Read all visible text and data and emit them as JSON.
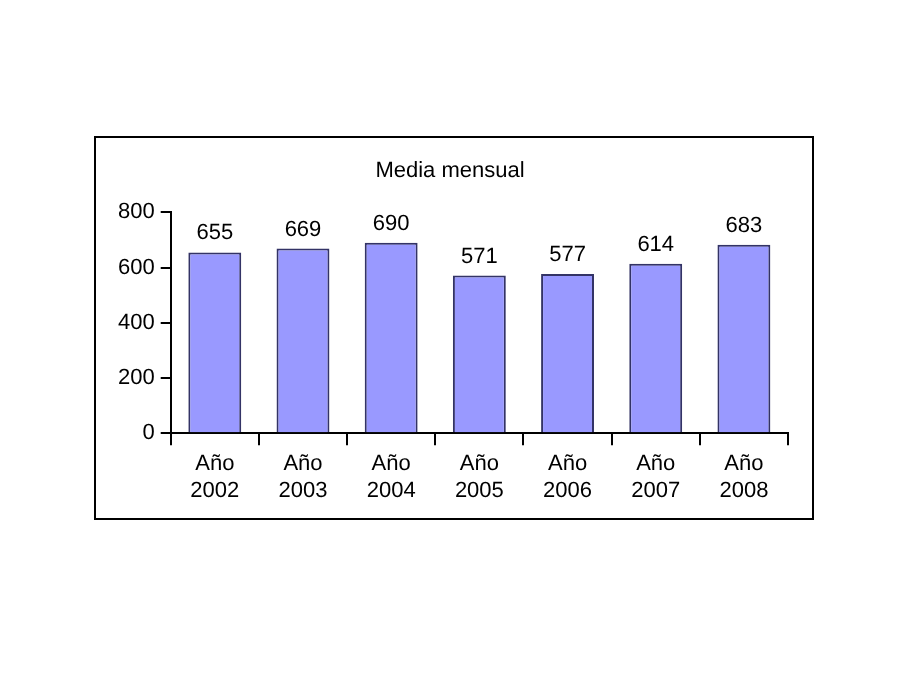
{
  "chart_data": {
    "type": "bar",
    "title": "Media mensual",
    "categories": [
      "Año 2002",
      "Año 2003",
      "Año 2004",
      "Año 2005",
      "Año 2006",
      "Año 2007",
      "Año 2008"
    ],
    "values": [
      655,
      669,
      690,
      571,
      577,
      614,
      683
    ],
    "color": "#9999ff",
    "ylim": [
      0,
      800
    ],
    "yticks": [
      0,
      200,
      400,
      600,
      800
    ],
    "grid": false,
    "data_labels": true,
    "legend": false
  }
}
